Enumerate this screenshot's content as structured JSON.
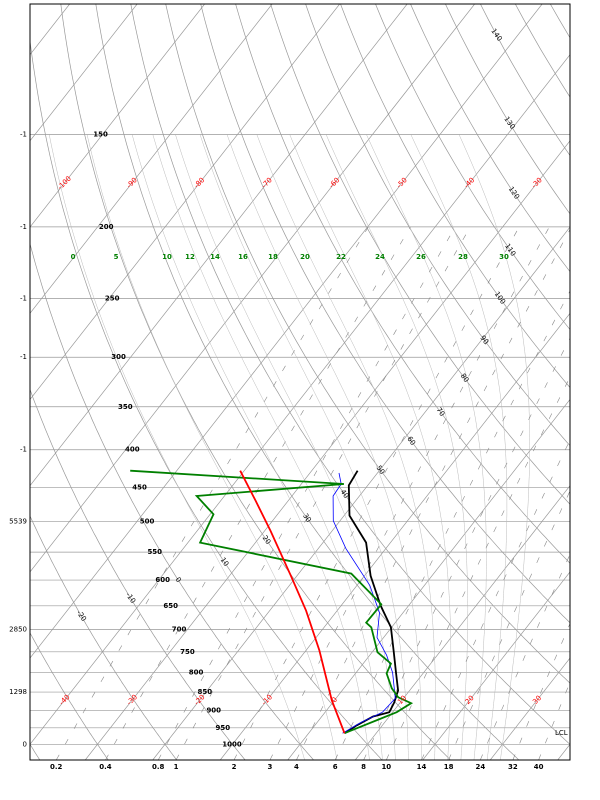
{
  "chart_data": {
    "type": "skewt",
    "ylim": [
      1050,
      100
    ],
    "yticks": [
      150,
      200,
      250,
      300,
      350,
      400,
      450,
      500,
      550,
      600,
      650,
      700,
      750,
      800,
      850,
      900,
      950,
      1000
    ],
    "xlim": [
      -40,
      40
    ],
    "isotherms": [
      -140,
      -130,
      -120,
      -110,
      -100,
      -90,
      -80,
      -70,
      -60,
      -50,
      -40,
      -30,
      -20,
      -10,
      0,
      10,
      20,
      30,
      40
    ],
    "isotherm_labels_upper": [
      -100,
      -90,
      -80,
      -70,
      -60,
      -50,
      -40,
      -30
    ],
    "isotherm_labels_lower": [
      -40,
      -30,
      -20,
      -10,
      0,
      10,
      20,
      30
    ],
    "dry_adiabats": [
      -40,
      -30,
      -20,
      -10,
      0,
      10,
      20,
      30,
      40,
      50,
      60,
      70,
      80,
      90,
      100,
      110,
      120,
      130,
      140,
      150,
      160,
      170,
      180,
      190,
      200
    ],
    "dry_adiabat_labels": [
      140,
      130,
      120,
      110,
      100,
      90,
      80,
      70,
      60,
      50,
      40,
      30,
      20,
      10,
      0,
      -10,
      -20
    ],
    "moist_adiabat_labels": [
      0,
      5,
      10,
      12,
      14,
      16,
      18,
      20,
      22,
      24,
      26,
      28,
      30
    ],
    "mixing_ratios": [
      0.2,
      0.4,
      0.8,
      1,
      2,
      3,
      4,
      6,
      8,
      10,
      14,
      18,
      24,
      32,
      40
    ],
    "heights": {
      "pressure": [
        150,
        200,
        250,
        300,
        400,
        500,
        700,
        850,
        1000
      ],
      "values": [
        -1,
        -1,
        -1,
        -1,
        -1,
        5539,
        2850,
        1298,
        0
      ]
    },
    "lcl_label": "LCL",
    "series": [
      {
        "color": "#000000",
        "pressure": [
          966,
          943,
          917,
          905,
          878,
          846,
          800,
          749,
          695,
          649,
          592,
          534,
          491,
          447,
          427
        ],
        "values": [
          5.3,
          6.2,
          7.6,
          9.5,
          9.1,
          8.3,
          5.9,
          3.1,
          -0.1,
          -4.2,
          -9.1,
          -13.6,
          -19.2,
          -22.8,
          -23.2
        ]
      },
      {
        "color": "#0000ff",
        "pressure": [
          966,
          934,
          905,
          867,
          800,
          758,
          717,
          664,
          610,
          544,
          499,
          462,
          445,
          430
        ],
        "values": [
          5.0,
          6.5,
          8.5,
          8.8,
          5.4,
          2.5,
          -1.0,
          -3.5,
          -8.1,
          -15.9,
          -21.0,
          -23.9,
          -24.1,
          -25.7
        ]
      },
      {
        "color": "#008000",
        "pressure": [
          966,
          905,
          880,
          864,
          840,
          802,
          778,
          751,
          695,
          685,
          647,
          588,
          534,
          489,
          462,
          445,
          427
        ],
        "values": [
          5.3,
          10.6,
          11.7,
          9.1,
          7.1,
          4.6,
          4.1,
          0.8,
          -3.0,
          -4.3,
          -4.2,
          -12.2,
          -38.2,
          -39.5,
          -44.1,
          -23.7,
          -56.9
        ]
      },
      {
        "color": "#ff0000",
        "pressure": [
          966,
          872,
          747,
          660,
          592,
          515,
          469,
          427
        ],
        "values": [
          5.3,
          -0.4,
          -8.0,
          -14.6,
          -20.9,
          -29.1,
          -34.8,
          -40.6
        ]
      }
    ]
  }
}
